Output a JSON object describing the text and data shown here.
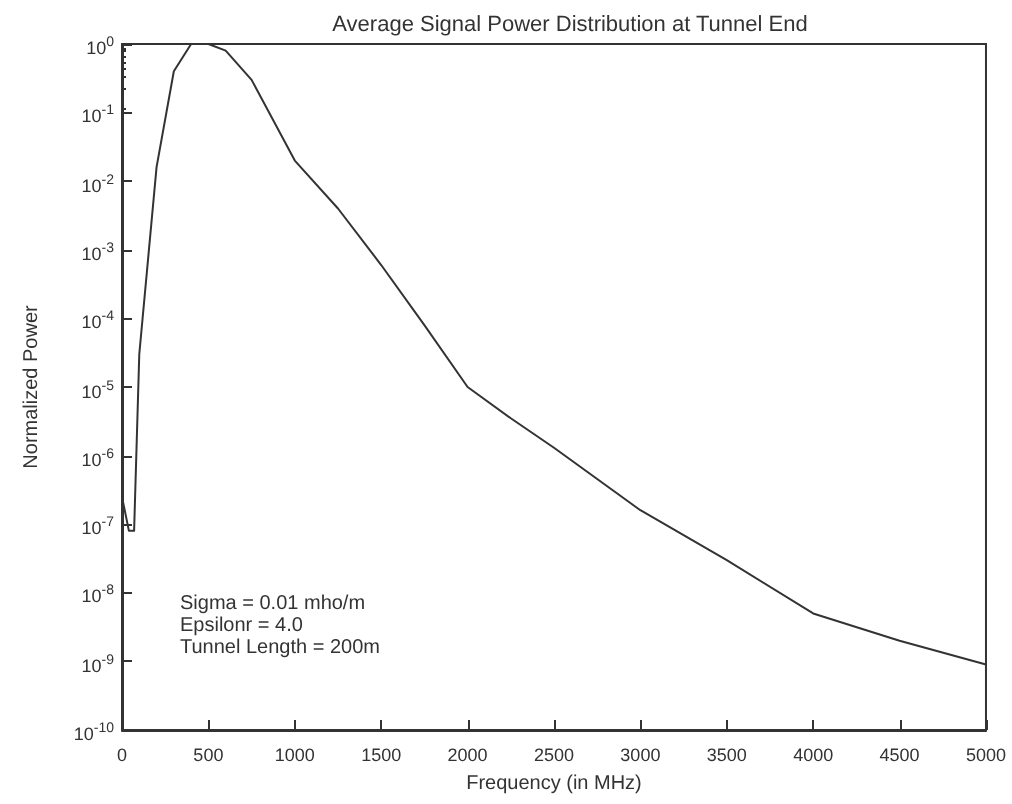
{
  "chart_data": {
    "type": "line",
    "title": "Average Signal Power Distribution at Tunnel End",
    "xlabel": "Frequency (in MHz)",
    "ylabel": "Normalized Power",
    "annotations": [
      "Sigma = 0.01 mho/m",
      "Epsilonr = 4.0",
      "Tunnel Length = 200m"
    ],
    "x": [
      0,
      40,
      70,
      100,
      200,
      300,
      400,
      500,
      600,
      750,
      1000,
      1250,
      1500,
      1750,
      2000,
      2250,
      2500,
      3000,
      3500,
      4000,
      4500,
      5000
    ],
    "series": [
      {
        "color": "#333333",
        "values": [
          2.5e-07,
          8e-08,
          8e-08,
          3e-05,
          0.016,
          0.4,
          1,
          1,
          0.8,
          0.3,
          0.02,
          0.004,
          0.0006,
          8e-05,
          1e-05,
          3.5e-06,
          1.3e-06,
          1.6e-07,
          3e-08,
          5e-09,
          2e-09,
          9e-10
        ]
      }
    ],
    "log": "y",
    "grid": false,
    "marker": "none",
    "line_style": "solid",
    "xlim": [
      0,
      5000
    ],
    "xticks": [
      0,
      500,
      1000,
      1500,
      2000,
      2500,
      3000,
      3500,
      4000,
      4500,
      5000
    ],
    "ylim": [
      1e-10,
      1
    ],
    "yticks": [
      {
        "value": 1e-10,
        "label": "10$^{-10}$"
      },
      {
        "value": 1e-09,
        "label": "10$^{-9}$"
      },
      {
        "value": 1e-08,
        "label": "10$^{-8}$"
      },
      {
        "value": 1e-07,
        "label": "10$^{-7}$"
      },
      {
        "value": 1e-06,
        "label": "10$^{-6}$"
      },
      {
        "value": 1e-05,
        "label": "10$^{-5}$"
      },
      {
        "value": 0.0001,
        "label": "10$^{-4}$"
      },
      {
        "value": 0.001,
        "label": "10$^{-3}$"
      },
      {
        "value": 0.01,
        "label": "10$^{-2}$"
      },
      {
        "value": 0.1,
        "label": "10$^{-1}$"
      },
      {
        "value": 1,
        "label": "10$^{0}$"
      }
    ]
  }
}
